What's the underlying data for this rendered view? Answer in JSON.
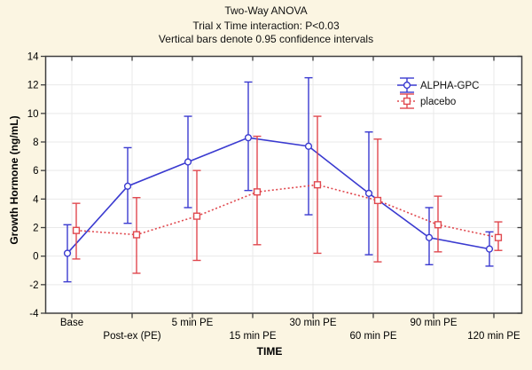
{
  "chart_data": {
    "type": "line",
    "title": "Two-Way ANOVA",
    "subtitle1": "Trial x Time interaction: P<0.03",
    "subtitle2": "Vertical bars denote 0.95 confidence intervals",
    "xlabel": "TIME",
    "ylabel": "Growth Hormone (ng/mL)",
    "ylim": [
      -4,
      14
    ],
    "yticks": [
      -4,
      -2,
      0,
      2,
      4,
      6,
      8,
      10,
      12,
      14
    ],
    "categories": [
      "Base",
      "Post-ex (PE)",
      "5 min PE",
      "15 min PE",
      "30 min PE",
      "60 min PE",
      "90 min PE",
      "120 min PE"
    ],
    "error_bar_meaning": "0.95 confidence intervals",
    "grid": true,
    "legend_position": "top-right-inside",
    "series": [
      {
        "name": "ALPHA-GPC",
        "color": "#3a3ad0",
        "marker": "circle",
        "line_style": "solid",
        "values": [
          0.2,
          4.9,
          6.6,
          8.3,
          7.7,
          4.4,
          1.3,
          0.5
        ],
        "ci_low": [
          -1.8,
          2.3,
          3.4,
          4.6,
          2.9,
          0.1,
          -0.6,
          -0.7
        ],
        "ci_high": [
          2.2,
          7.6,
          9.8,
          12.2,
          12.5,
          8.7,
          3.4,
          1.7
        ]
      },
      {
        "name": "placebo",
        "color": "#e0484e",
        "marker": "square",
        "line_style": "dashed",
        "values": [
          1.8,
          1.5,
          2.8,
          4.5,
          5.0,
          3.9,
          2.2,
          1.3
        ],
        "ci_low": [
          -0.2,
          -1.2,
          -0.3,
          0.8,
          0.2,
          -0.4,
          0.3,
          0.4
        ],
        "ci_high": [
          3.7,
          4.1,
          6.0,
          8.4,
          9.8,
          8.2,
          4.2,
          2.4
        ]
      }
    ],
    "colors": {
      "background": "#fbf5e2",
      "plot_background": "#ffffff",
      "gridline": "#e9e9e9",
      "axis": "#3f3f3f",
      "text": "#000000"
    }
  }
}
